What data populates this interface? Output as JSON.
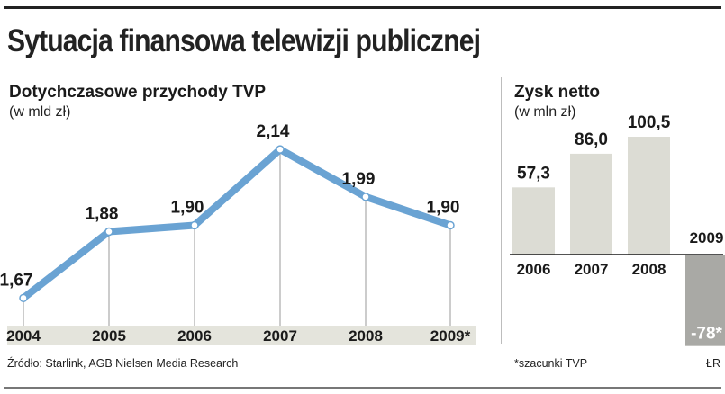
{
  "title": "Sytuacja finansowa telewizji publicznej",
  "colors": {
    "line": "#6aa3d3",
    "bar": "#dcdcd4",
    "bar_negative": "#a9a9a5",
    "axis_band": "#e4e4dc"
  },
  "chart_data": [
    {
      "type": "line",
      "title": "Dotychczasowe przychody TVP",
      "unit": "(w mld zł)",
      "categories": [
        "2004",
        "2005",
        "2006",
        "2007",
        "2008",
        "2009*"
      ],
      "values": [
        1.67,
        1.88,
        1.9,
        2.14,
        1.99,
        1.9
      ],
      "labels": [
        "1,67",
        "1,88",
        "1,90",
        "2,14",
        "1,99",
        "1,90"
      ],
      "ylim": [
        1.56,
        2.2
      ],
      "grid": false
    },
    {
      "type": "bar",
      "title": "Zysk netto",
      "unit": "(w mln zł)",
      "categories": [
        "2006",
        "2007",
        "2008",
        "2009"
      ],
      "values": [
        57.3,
        86.0,
        100.5,
        -78
      ],
      "labels": [
        "57,3",
        "86,0",
        "100,5",
        "-78*"
      ],
      "ylim": [
        -100,
        140
      ]
    }
  ],
  "footer": {
    "source": "Źródło: Starlink, AGB Nielsen Media Research",
    "note": "*szacunki TVP",
    "credit": "ŁR"
  }
}
